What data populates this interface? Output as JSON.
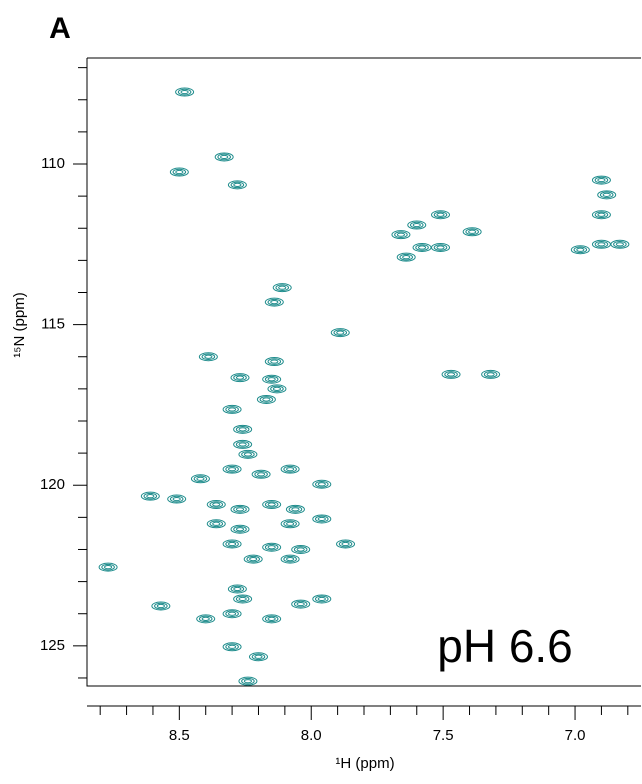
{
  "chart_data": {
    "type": "scatter",
    "panel_label": "A",
    "annotation": "pH 6.6",
    "x_label": "¹H (ppm)",
    "y_label": "¹⁵N (ppm)",
    "xlim": [
      8.85,
      6.75
    ],
    "ylim": [
      126.25,
      106.7
    ],
    "xticks": [
      {
        "value": 8.5,
        "label": "8.5"
      },
      {
        "value": 8.0,
        "label": "8.0"
      },
      {
        "value": 7.5,
        "label": "7.5"
      },
      {
        "value": 7.0,
        "label": "7.0"
      }
    ],
    "xminorticks": [
      8.8,
      8.7,
      8.6,
      8.4,
      8.3,
      8.2,
      8.1,
      7.9,
      7.8,
      7.7,
      7.6,
      7.4,
      7.3,
      7.2,
      7.1,
      6.9,
      6.8
    ],
    "yticks": [
      110,
      115,
      120,
      125
    ],
    "yminorticks": [
      107,
      108,
      109,
      111,
      112,
      113,
      114,
      116,
      117,
      118,
      119,
      121,
      122,
      123,
      124,
      126
    ],
    "series": [
      {
        "color": "#1e8c8c",
        "x": [
          8.48,
          8.33,
          8.28,
          8.5,
          8.11,
          8.14,
          7.89,
          8.39,
          8.27,
          8.14,
          8.15,
          8.13,
          8.3,
          8.17,
          8.26,
          8.26,
          8.24,
          8.42,
          8.3,
          8.19,
          8.08,
          7.96,
          8.61,
          8.51,
          8.36,
          8.27,
          8.15,
          8.06,
          8.36,
          8.27,
          8.08,
          7.96,
          8.3,
          8.15,
          8.04,
          7.87,
          8.22,
          8.08,
          8.77,
          8.28,
          8.26,
          8.57,
          8.4,
          8.3,
          8.15,
          8.04,
          7.96,
          8.3,
          8.2,
          8.24,
          7.66,
          7.58,
          7.51,
          7.6,
          7.51,
          7.39,
          7.64,
          6.98,
          6.9,
          6.83,
          6.9,
          6.88,
          7.47,
          7.32,
          6.9
        ],
        "y": [
          107.76,
          109.78,
          110.65,
          110.25,
          113.85,
          114.3,
          115.25,
          116.0,
          116.65,
          116.15,
          116.7,
          117.0,
          117.64,
          117.33,
          118.26,
          118.73,
          119.04,
          119.8,
          119.5,
          119.66,
          119.5,
          119.97,
          120.34,
          120.43,
          120.6,
          120.75,
          120.6,
          120.75,
          121.2,
          121.37,
          121.2,
          121.05,
          121.83,
          121.93,
          122.0,
          121.83,
          122.3,
          122.3,
          122.55,
          123.23,
          123.54,
          123.76,
          124.16,
          124.0,
          124.16,
          123.7,
          123.54,
          125.03,
          125.34,
          126.1,
          112.2,
          112.6,
          112.6,
          111.9,
          111.58,
          112.11,
          112.9,
          112.67,
          112.5,
          112.5,
          111.58,
          110.96,
          116.55,
          116.55,
          110.5
        ]
      }
    ]
  }
}
